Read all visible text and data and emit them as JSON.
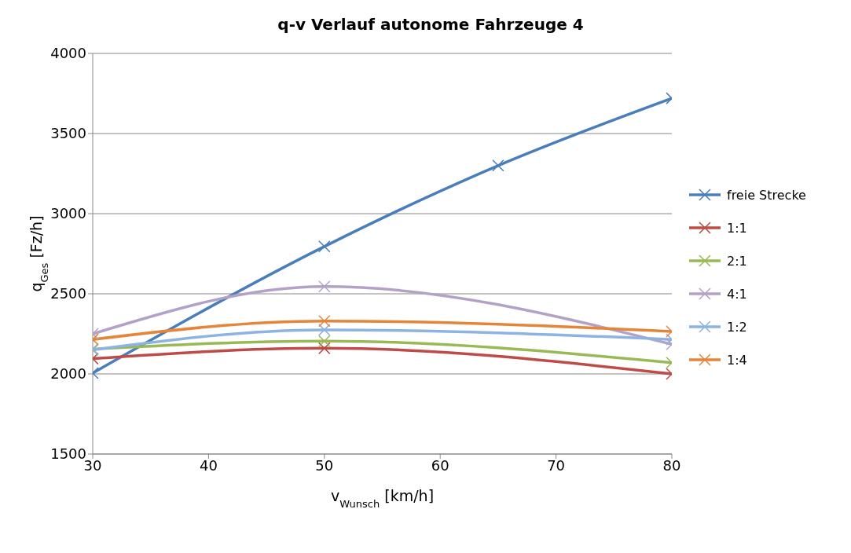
{
  "chart_data": {
    "type": "line",
    "title": "q-v Verlauf autonome Fahrzeuge 4",
    "xlabel": "v$_{Wunsch}$ [km/h]",
    "ylabel": "q$_{Ges}$ [Fz/h]",
    "xlim": [
      30,
      80
    ],
    "xticks": [
      30,
      40,
      50,
      60,
      70,
      80
    ],
    "ylim": [
      1500,
      4000
    ],
    "yticks": [
      1500,
      2000,
      2500,
      3000,
      3500,
      4000
    ],
    "grid": "y",
    "legend": "right",
    "marker": "cross",
    "series": [
      {
        "name": "freie Strecke",
        "color": "#4a7ebb",
        "x": [
          30,
          50,
          65,
          80
        ],
        "values": [
          2005,
          2795,
          3300,
          3720
        ]
      },
      {
        "name": "1:1",
        "color": "#be4b48",
        "x": [
          30,
          50,
          80
        ],
        "values": [
          2095,
          2160,
          2000
        ]
      },
      {
        "name": "2:1",
        "color": "#98b954",
        "x": [
          30,
          50,
          80
        ],
        "values": [
          2155,
          2205,
          2070
        ]
      },
      {
        "name": "4:1",
        "color": "#b3a2c7",
        "x": [
          30,
          50,
          80
        ],
        "values": [
          2250,
          2545,
          2185
        ]
      },
      {
        "name": "1:2",
        "color": "#8db3e2",
        "x": [
          30,
          50,
          80
        ],
        "values": [
          2150,
          2275,
          2215
        ]
      },
      {
        "name": "1:4",
        "color": "#e5853a",
        "x": [
          30,
          50,
          80
        ],
        "values": [
          2215,
          2330,
          2265
        ]
      }
    ]
  }
}
